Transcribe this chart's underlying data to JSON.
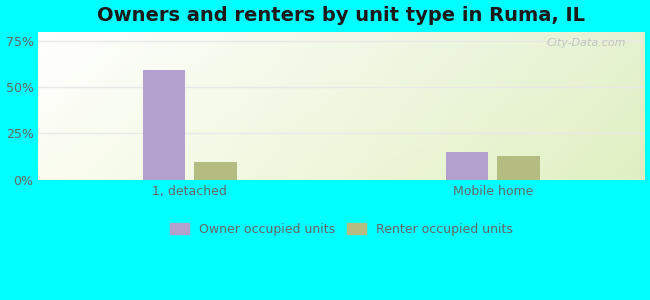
{
  "title": "Owners and renters by unit type in Ruma, IL",
  "categories": [
    "1, detached",
    "Mobile home"
  ],
  "owner_values": [
    59.5,
    14.8
  ],
  "renter_values": [
    9.8,
    12.8
  ],
  "owner_color": "#b3a0cc",
  "renter_color": "#b5bc82",
  "ylim": [
    0,
    80
  ],
  "yticks": [
    0,
    25,
    50,
    75
  ],
  "yticklabels": [
    "0%",
    "25%",
    "50%",
    "75%"
  ],
  "background_outer": "#00ffff",
  "legend_owner": "Owner occupied units",
  "legend_renter": "Renter occupied units",
  "bar_width": 0.28,
  "group_centers": [
    1.0,
    3.0
  ],
  "xlim": [
    0,
    4.0
  ],
  "title_fontsize": 14,
  "watermark": "City-Data.com",
  "watermark_color": "#bbbbbb",
  "grid_color": "#e8e8e8",
  "tick_color": "#666666"
}
